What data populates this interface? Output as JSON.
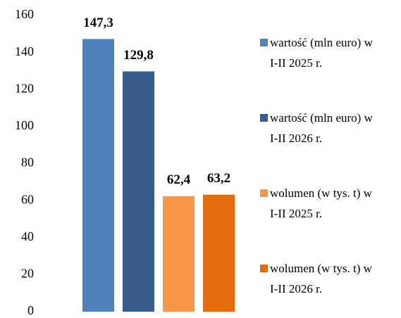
{
  "chart_data": {
    "type": "bar",
    "series": [
      {
        "name": "wartość (mln euro) w I-II 2025 r.",
        "color": "#4f81bd",
        "values": [
          147.3
        ],
        "value_labels": [
          "147,3"
        ]
      },
      {
        "name": "wartość (mln euro) w I-II 2026 r.",
        "color": "#385d8a",
        "values": [
          129.8
        ],
        "value_labels": [
          "129,8"
        ]
      },
      {
        "name": "wolumen (w tys. t) w I-II 2025 r.",
        "color": "#f79646",
        "values": [
          62.4
        ],
        "value_labels": [
          "62,4"
        ]
      },
      {
        "name": "wolumen (w tys. t) w I-II 2026 r.",
        "color": "#e46c0a",
        "values": [
          63.2
        ],
        "value_labels": [
          "63,2"
        ]
      }
    ],
    "ylim": [
      0,
      160
    ],
    "yticks": [
      0,
      20,
      40,
      60,
      80,
      100,
      120,
      140,
      160
    ],
    "grid": false,
    "legend": "right"
  }
}
